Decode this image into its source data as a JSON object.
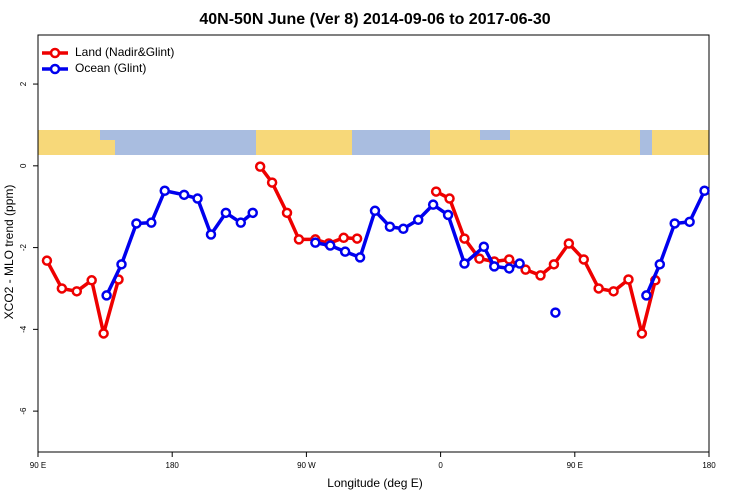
{
  "chart_data": {
    "type": "line",
    "title": "40N-50N June (Ver 8)   2014-09-06 to 2017-06-30",
    "x_label": "Longitude (deg E)",
    "y_label": "XCO2 - MLO trend (ppm)",
    "xlim": [
      90,
      540
    ],
    "ylim": [
      -7,
      3.2
    ],
    "xticks": [
      {
        "value": 90,
        "label": "90 E"
      },
      180,
      {
        "value": 270,
        "label": "90 W"
      },
      {
        "value": 360,
        "label": "0"
      },
      {
        "value": 450,
        "label": "90 E"
      },
      {
        "value": 540,
        "label": "180"
      }
    ],
    "yticks": [
      2,
      0,
      -2,
      -4,
      -6
    ],
    "legend": "top-left",
    "series": [
      {
        "name": "Land (Nadir&Glint)",
        "color": "#ee0000",
        "x": [
          96,
          106,
          116,
          126,
          134,
          144,
          190,
          239,
          247,
          257,
          265,
          276,
          285,
          295,
          304,
          330,
          357,
          366,
          376,
          386,
          396,
          406,
          417,
          427,
          436,
          446,
          456,
          466,
          476,
          486,
          495,
          504
        ],
        "values": [
          -2.32,
          -3.0,
          -3.07,
          -2.8,
          -4.1,
          -2.78,
          null,
          -0.02,
          -0.41,
          -1.15,
          -1.8,
          -1.8,
          -1.9,
          -1.76,
          -1.78,
          null,
          -0.63,
          -0.8,
          -1.78,
          -2.27,
          -2.34,
          -2.29,
          -2.54,
          -2.68,
          -2.41,
          -1.9,
          -2.29,
          -3.0,
          -3.07,
          -2.78,
          -4.1,
          -2.8
        ]
      },
      {
        "name": "Ocean (Glint)",
        "color": "#0000ee",
        "x": [
          136,
          146,
          156,
          166,
          175,
          188,
          197,
          206,
          216,
          226,
          234,
          255,
          276,
          286,
          296,
          306,
          316,
          326,
          335,
          345,
          355,
          365,
          376,
          389,
          396,
          406,
          413,
          425,
          437,
          470,
          498,
          507,
          517,
          527,
          537
        ],
        "values": [
          -3.17,
          -2.41,
          -1.41,
          -1.39,
          -0.61,
          -0.71,
          -0.8,
          -1.68,
          -1.15,
          -1.39,
          -1.15,
          null,
          -1.88,
          -1.95,
          -2.1,
          -2.24,
          -1.1,
          -1.49,
          -1.54,
          -1.32,
          -0.95,
          -1.2,
          -2.39,
          -1.98,
          -2.46,
          -2.51,
          -2.39,
          null,
          -3.59,
          null,
          -3.17,
          -2.41,
          -1.41,
          -1.37,
          -0.61
        ]
      }
    ]
  }
}
